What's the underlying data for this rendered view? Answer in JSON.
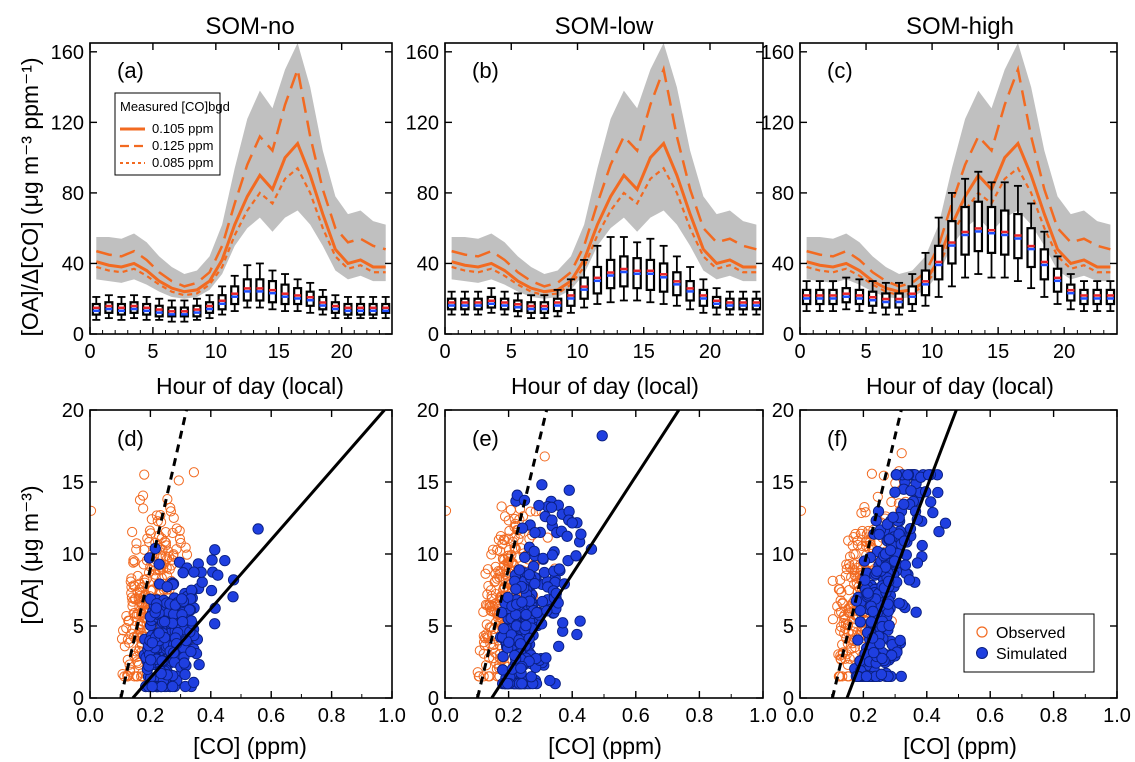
{
  "titles": [
    "SOM-no",
    "SOM-low",
    "SOM-high"
  ],
  "top_xlabel": "Hour of day (local)",
  "top_ylabel": "[OA]/Δ[CO] (μg m⁻³ ppm⁻¹)",
  "bottom_xlabel": "[CO] (ppm)",
  "bottom_ylabel": "[OA]  (μg m⁻³)",
  "panel_labels": [
    "(a)",
    "(b)",
    "(c)",
    "(d)",
    "(e)",
    "(f)"
  ],
  "legend_top": {
    "title": "Measured [CO]bgd",
    "entries": [
      "0.105 ppm",
      "0.125 ppm",
      "0.085 ppm"
    ]
  },
  "legend_bottom": {
    "entries": [
      "Observed",
      "Simulated"
    ]
  },
  "colors": {
    "orange": "#f26a21",
    "band": "#c0c0c0",
    "sim_fill": "#1f3fe0",
    "sim_edge": "#0a1f80",
    "median_red": "#e8242a",
    "mean_blue": "#2050ff"
  },
  "chart_data": [
    {
      "type": "line",
      "panel": "(a)",
      "title": "SOM-no",
      "xlabel": "Hour of day (local)",
      "ylabel": "[OA]/Δ[CO] (μg m⁻³ ppm⁻¹)",
      "xlim": [
        0,
        24
      ],
      "ylim": [
        0,
        165
      ],
      "xticks": [
        0,
        5,
        10,
        15,
        20
      ],
      "yticks": [
        0,
        40,
        80,
        120,
        160
      ],
      "x": [
        0.5,
        1.5,
        2.5,
        3.5,
        4.5,
        5.5,
        6.5,
        7.5,
        8.5,
        9.5,
        10.5,
        11.5,
        12.5,
        13.5,
        14.5,
        15.5,
        16.5,
        17.5,
        18.5,
        19.5,
        20.5,
        21.5,
        22.5,
        23.5
      ],
      "series": [
        {
          "name": "0.105 ppm",
          "values": [
            41,
            39,
            38,
            40,
            36,
            30,
            26,
            24,
            25,
            30,
            42,
            62,
            78,
            90,
            82,
            100,
            108,
            90,
            68,
            48,
            40,
            42,
            38,
            38
          ]
        },
        {
          "name": "0.125 ppm",
          "values": [
            47,
            45,
            44,
            47,
            42,
            35,
            30,
            27,
            29,
            35,
            50,
            74,
            96,
            112,
            104,
            130,
            150,
            112,
            82,
            60,
            52,
            54,
            50,
            48
          ]
        },
        {
          "name": "0.085 ppm",
          "values": [
            38,
            36,
            35,
            37,
            33,
            28,
            24,
            22,
            23,
            28,
            38,
            56,
            70,
            80,
            74,
            88,
            94,
            80,
            60,
            44,
            37,
            39,
            35,
            35
          ]
        }
      ],
      "band": {
        "lower": [
          31,
          30,
          29,
          31,
          28,
          24,
          21,
          20,
          21,
          25,
          34,
          50,
          60,
          66,
          58,
          66,
          70,
          62,
          50,
          36,
          31,
          33,
          30,
          30
        ],
        "upper": [
          55,
          55,
          54,
          57,
          52,
          44,
          38,
          34,
          36,
          44,
          62,
          94,
          122,
          138,
          128,
          150,
          165,
          140,
          104,
          78,
          68,
          70,
          64,
          62
        ]
      },
      "boxes": {
        "median": [
          14,
          15,
          14,
          15,
          14,
          13,
          12,
          12,
          13,
          15,
          18,
          22,
          25,
          25,
          24,
          22,
          21,
          20,
          17,
          15,
          14,
          14,
          14,
          14
        ],
        "q1": [
          11,
          12,
          11,
          12,
          11,
          10,
          10,
          10,
          10,
          12,
          14,
          17,
          19,
          19,
          18,
          17,
          17,
          16,
          14,
          12,
          11,
          11,
          11,
          12
        ],
        "q3": [
          17,
          18,
          17,
          18,
          17,
          16,
          15,
          15,
          16,
          18,
          22,
          27,
          31,
          31,
          30,
          28,
          26,
          24,
          21,
          18,
          17,
          17,
          17,
          17
        ],
        "low": [
          8,
          9,
          8,
          9,
          8,
          8,
          7,
          7,
          8,
          9,
          11,
          13,
          15,
          15,
          14,
          13,
          13,
          12,
          11,
          9,
          9,
          9,
          9,
          9
        ],
        "high": [
          21,
          22,
          21,
          22,
          21,
          20,
          19,
          19,
          20,
          22,
          27,
          33,
          39,
          40,
          36,
          34,
          31,
          29,
          25,
          22,
          21,
          21,
          21,
          21
        ]
      }
    },
    {
      "type": "line",
      "panel": "(b)",
      "title": "SOM-low",
      "xlabel": "Hour of day (local)",
      "xlim": [
        0,
        24
      ],
      "ylim": [
        0,
        165
      ],
      "xticks": [
        0,
        5,
        10,
        15,
        20
      ],
      "yticks": [
        0,
        40,
        80,
        120,
        160
      ],
      "x": [
        0.5,
        1.5,
        2.5,
        3.5,
        4.5,
        5.5,
        6.5,
        7.5,
        8.5,
        9.5,
        10.5,
        11.5,
        12.5,
        13.5,
        14.5,
        15.5,
        16.5,
        17.5,
        18.5,
        19.5,
        20.5,
        21.5,
        22.5,
        23.5
      ],
      "series": [
        {
          "name": "0.105 ppm",
          "values": [
            41,
            39,
            38,
            40,
            36,
            30,
            26,
            24,
            25,
            30,
            42,
            62,
            78,
            90,
            82,
            100,
            108,
            90,
            68,
            48,
            40,
            42,
            38,
            38
          ]
        },
        {
          "name": "0.125 ppm",
          "values": [
            47,
            45,
            44,
            47,
            42,
            35,
            30,
            27,
            29,
            35,
            50,
            74,
            96,
            112,
            104,
            130,
            150,
            112,
            82,
            60,
            52,
            54,
            50,
            48
          ]
        },
        {
          "name": "0.085 ppm",
          "values": [
            38,
            36,
            35,
            37,
            33,
            28,
            24,
            22,
            23,
            28,
            38,
            56,
            70,
            80,
            74,
            88,
            94,
            80,
            60,
            44,
            37,
            39,
            35,
            35
          ]
        }
      ],
      "band": {
        "lower": [
          31,
          30,
          29,
          31,
          28,
          24,
          21,
          20,
          21,
          25,
          34,
          50,
          60,
          66,
          58,
          66,
          70,
          62,
          50,
          36,
          31,
          33,
          30,
          30
        ],
        "upper": [
          55,
          55,
          54,
          57,
          52,
          44,
          38,
          34,
          36,
          44,
          62,
          94,
          122,
          138,
          128,
          150,
          165,
          140,
          104,
          78,
          68,
          70,
          64,
          62
        ]
      },
      "boxes": {
        "median": [
          17,
          17,
          17,
          18,
          17,
          16,
          15,
          15,
          17,
          21,
          26,
          31,
          34,
          36,
          35,
          35,
          33,
          29,
          25,
          21,
          18,
          17,
          17,
          17
        ],
        "q1": [
          14,
          14,
          14,
          15,
          14,
          13,
          12,
          12,
          13,
          16,
          20,
          23,
          26,
          27,
          26,
          25,
          24,
          22,
          19,
          16,
          15,
          14,
          14,
          14
        ],
        "q3": [
          20,
          20,
          20,
          21,
          20,
          19,
          18,
          18,
          20,
          25,
          32,
          38,
          42,
          44,
          43,
          42,
          40,
          35,
          30,
          25,
          21,
          20,
          20,
          20
        ],
        "low": [
          11,
          11,
          11,
          12,
          11,
          10,
          9,
          9,
          10,
          12,
          15,
          17,
          18,
          19,
          19,
          18,
          17,
          16,
          14,
          12,
          11,
          11,
          11,
          11
        ],
        "high": [
          24,
          24,
          24,
          26,
          24,
          23,
          22,
          22,
          25,
          31,
          42,
          50,
          55,
          55,
          52,
          54,
          50,
          44,
          38,
          31,
          26,
          24,
          24,
          24
        ]
      }
    },
    {
      "type": "line",
      "panel": "(c)",
      "title": "SOM-high",
      "xlabel": "Hour of day (local)",
      "xlim": [
        0,
        24
      ],
      "ylim": [
        0,
        165
      ],
      "xticks": [
        0,
        5,
        10,
        15,
        20
      ],
      "yticks": [
        0,
        40,
        80,
        120,
        160
      ],
      "x": [
        0.5,
        1.5,
        2.5,
        3.5,
        4.5,
        5.5,
        6.5,
        7.5,
        8.5,
        9.5,
        10.5,
        11.5,
        12.5,
        13.5,
        14.5,
        15.5,
        16.5,
        17.5,
        18.5,
        19.5,
        20.5,
        21.5,
        22.5,
        23.5
      ],
      "series": [
        {
          "name": "0.105 ppm",
          "values": [
            41,
            39,
            38,
            40,
            36,
            30,
            26,
            24,
            25,
            30,
            42,
            62,
            78,
            90,
            82,
            100,
            108,
            90,
            68,
            48,
            40,
            42,
            38,
            38
          ]
        },
        {
          "name": "0.125 ppm",
          "values": [
            47,
            45,
            44,
            47,
            42,
            35,
            30,
            27,
            29,
            35,
            50,
            74,
            96,
            112,
            104,
            130,
            150,
            112,
            82,
            60,
            52,
            54,
            50,
            48
          ]
        },
        {
          "name": "0.085 ppm",
          "values": [
            38,
            36,
            35,
            37,
            33,
            28,
            24,
            22,
            23,
            28,
            38,
            56,
            70,
            80,
            74,
            88,
            94,
            80,
            60,
            44,
            37,
            39,
            35,
            35
          ]
        }
      ],
      "band": {
        "lower": [
          31,
          30,
          29,
          31,
          28,
          24,
          21,
          20,
          21,
          25,
          34,
          50,
          60,
          66,
          58,
          66,
          70,
          62,
          50,
          36,
          31,
          33,
          30,
          30
        ],
        "upper": [
          55,
          55,
          54,
          57,
          52,
          44,
          38,
          34,
          36,
          44,
          62,
          94,
          122,
          138,
          128,
          150,
          165,
          140,
          104,
          78,
          68,
          70,
          64,
          62
        ]
      },
      "boxes": {
        "median": [
          21,
          21,
          21,
          22,
          21,
          20,
          19,
          19,
          22,
          29,
          40,
          51,
          57,
          59,
          58,
          57,
          55,
          49,
          40,
          31,
          24,
          21,
          21,
          21
        ],
        "q1": [
          17,
          17,
          17,
          18,
          17,
          16,
          15,
          15,
          17,
          22,
          31,
          40,
          45,
          47,
          46,
          45,
          43,
          38,
          31,
          24,
          19,
          17,
          17,
          17
        ],
        "q3": [
          25,
          25,
          25,
          26,
          25,
          24,
          23,
          23,
          27,
          36,
          50,
          64,
          72,
          75,
          72,
          70,
          68,
          60,
          48,
          37,
          28,
          25,
          25,
          25
        ],
        "low": [
          13,
          13,
          13,
          14,
          13,
          12,
          11,
          11,
          13,
          16,
          21,
          27,
          32,
          34,
          32,
          32,
          30,
          26,
          21,
          17,
          14,
          13,
          13,
          13
        ],
        "high": [
          30,
          30,
          30,
          32,
          31,
          30,
          29,
          29,
          34,
          46,
          66,
          80,
          88,
          92,
          86,
          86,
          84,
          74,
          58,
          44,
          34,
          30,
          30,
          30
        ]
      }
    },
    {
      "type": "scatter",
      "panel": "(d)",
      "xlabel": "[CO] (ppm)",
      "ylabel": "[OA]  (μg m⁻³)",
      "xlim": [
        0,
        1.0
      ],
      "ylim": [
        0,
        20
      ],
      "xticks": [
        0.0,
        0.2,
        0.4,
        0.6,
        0.8,
        1.0
      ],
      "yticks": [
        0,
        5,
        10,
        15,
        20
      ],
      "observed": {
        "co_range": [
          0.1,
          0.45
        ],
        "oa_range": [
          1.5,
          17
        ],
        "outlier": [
          0.0,
          13
        ]
      },
      "simulated": {
        "co_range": [
          0.15,
          0.6
        ],
        "oa_range": [
          0.8,
          12.5
        ],
        "slope": 24,
        "intercept": -2.3
      },
      "obs_fit": {
        "slope": 92,
        "intercept": -9.4,
        "style": "dashed"
      },
      "sim_fit": {
        "slope": 24,
        "intercept": -3.4,
        "style": "solid"
      }
    },
    {
      "type": "scatter",
      "panel": "(e)",
      "xlabel": "[CO] (ppm)",
      "xlim": [
        0,
        1.0
      ],
      "ylim": [
        0,
        20
      ],
      "xticks": [
        0.0,
        0.2,
        0.4,
        0.6,
        0.8,
        1.0
      ],
      "yticks": [
        0,
        5,
        10,
        15,
        20
      ],
      "observed": {
        "co_range": [
          0.1,
          0.45
        ],
        "oa_range": [
          1.5,
          17
        ],
        "outlier": [
          0.0,
          13
        ]
      },
      "simulated": {
        "co_range": [
          0.15,
          0.6
        ],
        "oa_range": [
          1,
          19
        ],
        "slope": 34,
        "intercept": -3.8
      },
      "obs_fit": {
        "slope": 92,
        "intercept": -9.4,
        "style": "dashed"
      },
      "sim_fit": {
        "slope": 34,
        "intercept": -5.0,
        "style": "solid"
      }
    },
    {
      "type": "scatter",
      "panel": "(f)",
      "xlabel": "[CO] (ppm)",
      "xlim": [
        0,
        1.0
      ],
      "ylim": [
        0,
        20
      ],
      "xticks": [
        0.0,
        0.2,
        0.4,
        0.6,
        0.8,
        1.0
      ],
      "yticks": [
        0,
        5,
        10,
        15,
        20
      ],
      "observed": {
        "co_range": [
          0.1,
          0.45
        ],
        "oa_range": [
          1.5,
          17
        ],
        "outlier": [
          0.0,
          13
        ]
      },
      "simulated": {
        "co_range": [
          0.15,
          0.6
        ],
        "oa_range": [
          1.5,
          15.5
        ],
        "slope": 45,
        "intercept": -4.5
      },
      "obs_fit": {
        "slope": 92,
        "intercept": -9.4,
        "style": "dashed"
      },
      "sim_fit": {
        "slope": 58,
        "intercept": -8.6,
        "style": "solid"
      }
    }
  ]
}
